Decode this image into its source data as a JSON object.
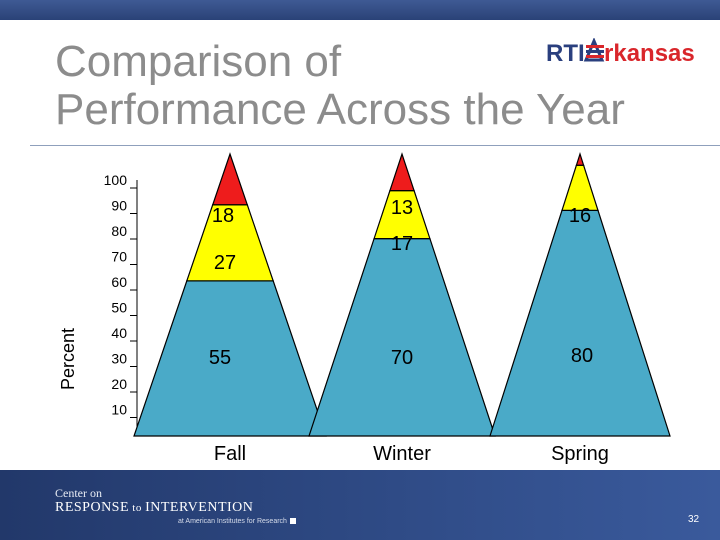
{
  "slide": {
    "title_line1": "Comparison of",
    "title_line2": "Performance Across the Year",
    "logo_text_left": "RTI",
    "logo_text_right": "rkansas",
    "page_number": "32"
  },
  "footer": {
    "line1": "Center on",
    "line2_a": "RESPONSE",
    "line2_b": " to ",
    "line2_c": "INTERVENTION",
    "line3": "at American Institutes for Research"
  },
  "colors": {
    "tier1": "#4aaac8",
    "tier2": "#ffff00",
    "tier3": "#ee1c1c",
    "banner": "#2a4277"
  },
  "chart_data": {
    "type": "bar",
    "stacked": true,
    "ylabel": "Percent",
    "y_ticks": [
      "100",
      "90",
      "80",
      "70",
      "60",
      "50",
      "40",
      "30",
      "20",
      "10"
    ],
    "categories": [
      "Fall",
      "Winter",
      "Spring"
    ],
    "series": [
      {
        "values": [
          55,
          70,
          80
        ]
      },
      {
        "values": [
          27,
          17,
          16
        ]
      },
      {
        "values": [
          18,
          13,
          4
        ]
      }
    ],
    "data_labels": [
      [
        "55",
        "70",
        "80"
      ],
      [
        "27",
        "17",
        "16"
      ],
      [
        "18",
        "13",
        ""
      ]
    ]
  }
}
